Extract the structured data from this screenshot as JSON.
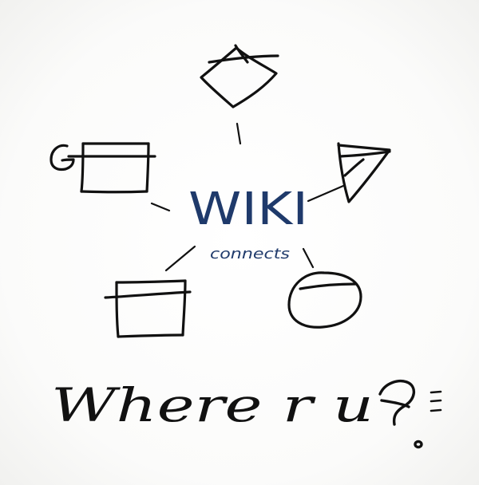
{
  "diagram": {
    "center": {
      "title": "WIKI",
      "subtitle": "connects",
      "color": "#1f3a6b"
    },
    "caption": "Where r u",
    "ink_color": "#111111",
    "nodes": [
      {
        "shape": "diamond"
      },
      {
        "shape": "triangle"
      },
      {
        "shape": "circle"
      },
      {
        "shape": "rectangle"
      },
      {
        "shape": "rectangle",
        "letter": "G"
      }
    ],
    "glyphs": {
      "question_mark": "question-mark",
      "equals_marks": "equals-marks"
    }
  }
}
